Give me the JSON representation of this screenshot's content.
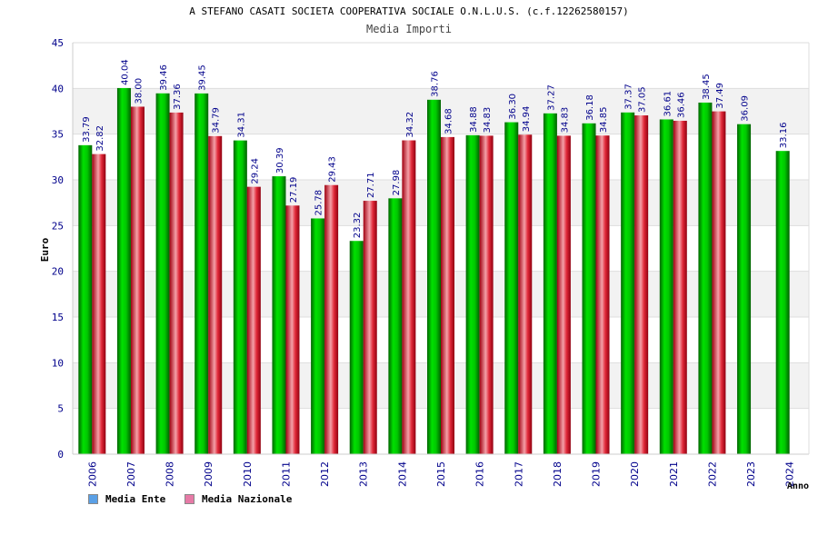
{
  "chart_data": {
    "type": "bar",
    "title": "A STEFANO CASATI SOCIETA COOPERATIVA SOCIALE O.N.L.U.S. (c.f.12262580157)",
    "subtitle": "Media Importi",
    "xlabel": "Anno",
    "ylabel": "Euro",
    "ylim": [
      0,
      45
    ],
    "yticks": [
      "0",
      "5",
      "10",
      "15",
      "20",
      "25",
      "30",
      "35",
      "40",
      "45"
    ],
    "categories": [
      "2006",
      "2007",
      "2008",
      "2009",
      "2010",
      "2011",
      "2012",
      "2013",
      "2014",
      "2015",
      "2016",
      "2017",
      "2018",
      "2019",
      "2020",
      "2021",
      "2022",
      "2023",
      "2024"
    ],
    "series": [
      {
        "name": "Media Ente",
        "color": "#00c000",
        "values": [
          33.79,
          40.04,
          39.46,
          39.45,
          34.31,
          30.39,
          25.78,
          23.32,
          27.98,
          38.76,
          34.88,
          36.3,
          37.27,
          36.18,
          37.37,
          36.61,
          38.45,
          36.09,
          33.16
        ],
        "labels": [
          "33.79",
          "40.04",
          "39.46",
          "39.45",
          "34.31",
          "30.39",
          "25.78",
          "23.32",
          "27.98",
          "38.76",
          "34.88",
          "36.30",
          "37.27",
          "36.18",
          "37.37",
          "36.61",
          "38.45",
          "36.09",
          "33.16"
        ]
      },
      {
        "name": "Media Nazionale",
        "color": "#e8283c",
        "values": [
          32.82,
          38.0,
          37.36,
          34.79,
          29.24,
          27.19,
          29.43,
          27.71,
          34.32,
          34.68,
          34.83,
          34.94,
          34.83,
          34.85,
          37.05,
          36.46,
          37.49,
          null,
          null
        ],
        "labels": [
          "32.82",
          "38.00",
          "37.36",
          "34.79",
          "29.24",
          "27.19",
          "29.43",
          "27.71",
          "34.32",
          "34.68",
          "34.83",
          "34.94",
          "34.83",
          "34.85",
          "37.05",
          "36.46",
          "37.49",
          "",
          ""
        ]
      }
    ],
    "grid": true,
    "legend_position": "bottom-left"
  },
  "legend": {
    "items": [
      {
        "label": "Media Ente",
        "color": "#5aa0e6"
      },
      {
        "label": "Media Nazionale",
        "color": "#e67aa6"
      }
    ]
  }
}
